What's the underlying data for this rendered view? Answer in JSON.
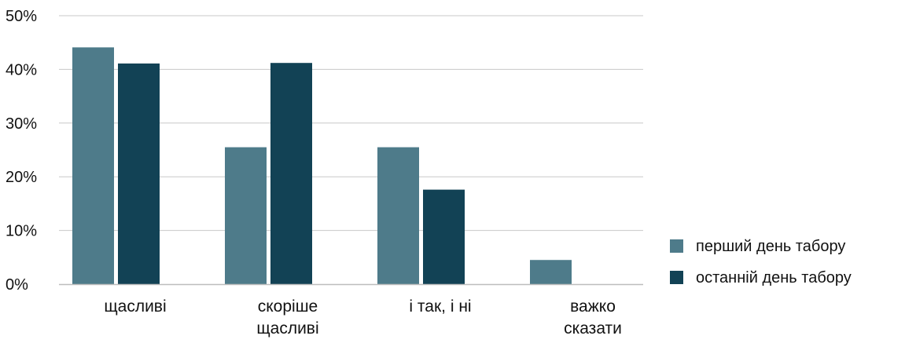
{
  "chart_data": {
    "type": "bar",
    "categories": [
      [
        "щасливі"
      ],
      [
        "скоріше",
        "щасливі"
      ],
      [
        "і так, і ні"
      ],
      [
        "важко",
        "сказати"
      ]
    ],
    "series": [
      {
        "name": "перший день табору",
        "values": [
          44.1,
          25.5,
          25.5,
          4.5
        ],
        "color": "#4e7b8a"
      },
      {
        "name": "останній день табору",
        "values": [
          41.1,
          41.2,
          17.6,
          0
        ],
        "color": "#124255"
      }
    ],
    "y_ticks": [
      "0%",
      "10%",
      "20%",
      "30%",
      "40%",
      "50%"
    ],
    "ylim": [
      0,
      50
    ],
    "grid": true,
    "legend_position": "right"
  }
}
